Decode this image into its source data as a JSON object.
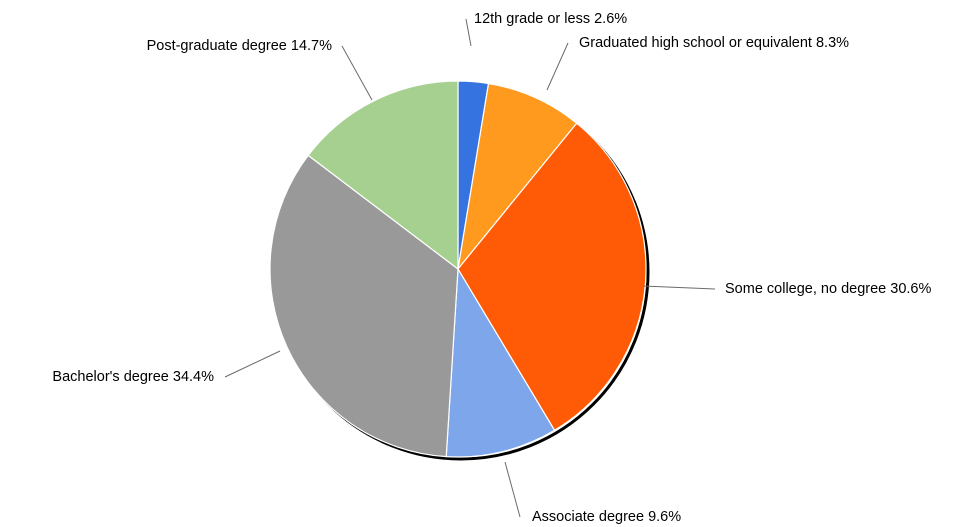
{
  "chart_data": {
    "type": "pie",
    "title": "",
    "start_angle_deg": 0,
    "direction": "clockwise",
    "slices": [
      {
        "label": "12th grade or less",
        "value": 2.6,
        "value_text": "2.6%",
        "color": "#3473e0"
      },
      {
        "label": "Graduated high school or equivalent",
        "value": 8.3,
        "value_text": "8.3%",
        "color": "#ff9a1f"
      },
      {
        "label": "Some college, no degree",
        "value": 30.6,
        "value_text": "30.6%",
        "color": "#ff5a05"
      },
      {
        "label": "Associate degree",
        "value": 9.6,
        "value_text": "9.6%",
        "color": "#7ea6ea"
      },
      {
        "label": "Bachelor's degree",
        "value": 34.4,
        "value_text": "34.4%",
        "color": "#999999"
      },
      {
        "label": "Post-graduate degree",
        "value": 14.7,
        "value_text": "14.7%",
        "color": "#a6d08f"
      }
    ]
  }
}
